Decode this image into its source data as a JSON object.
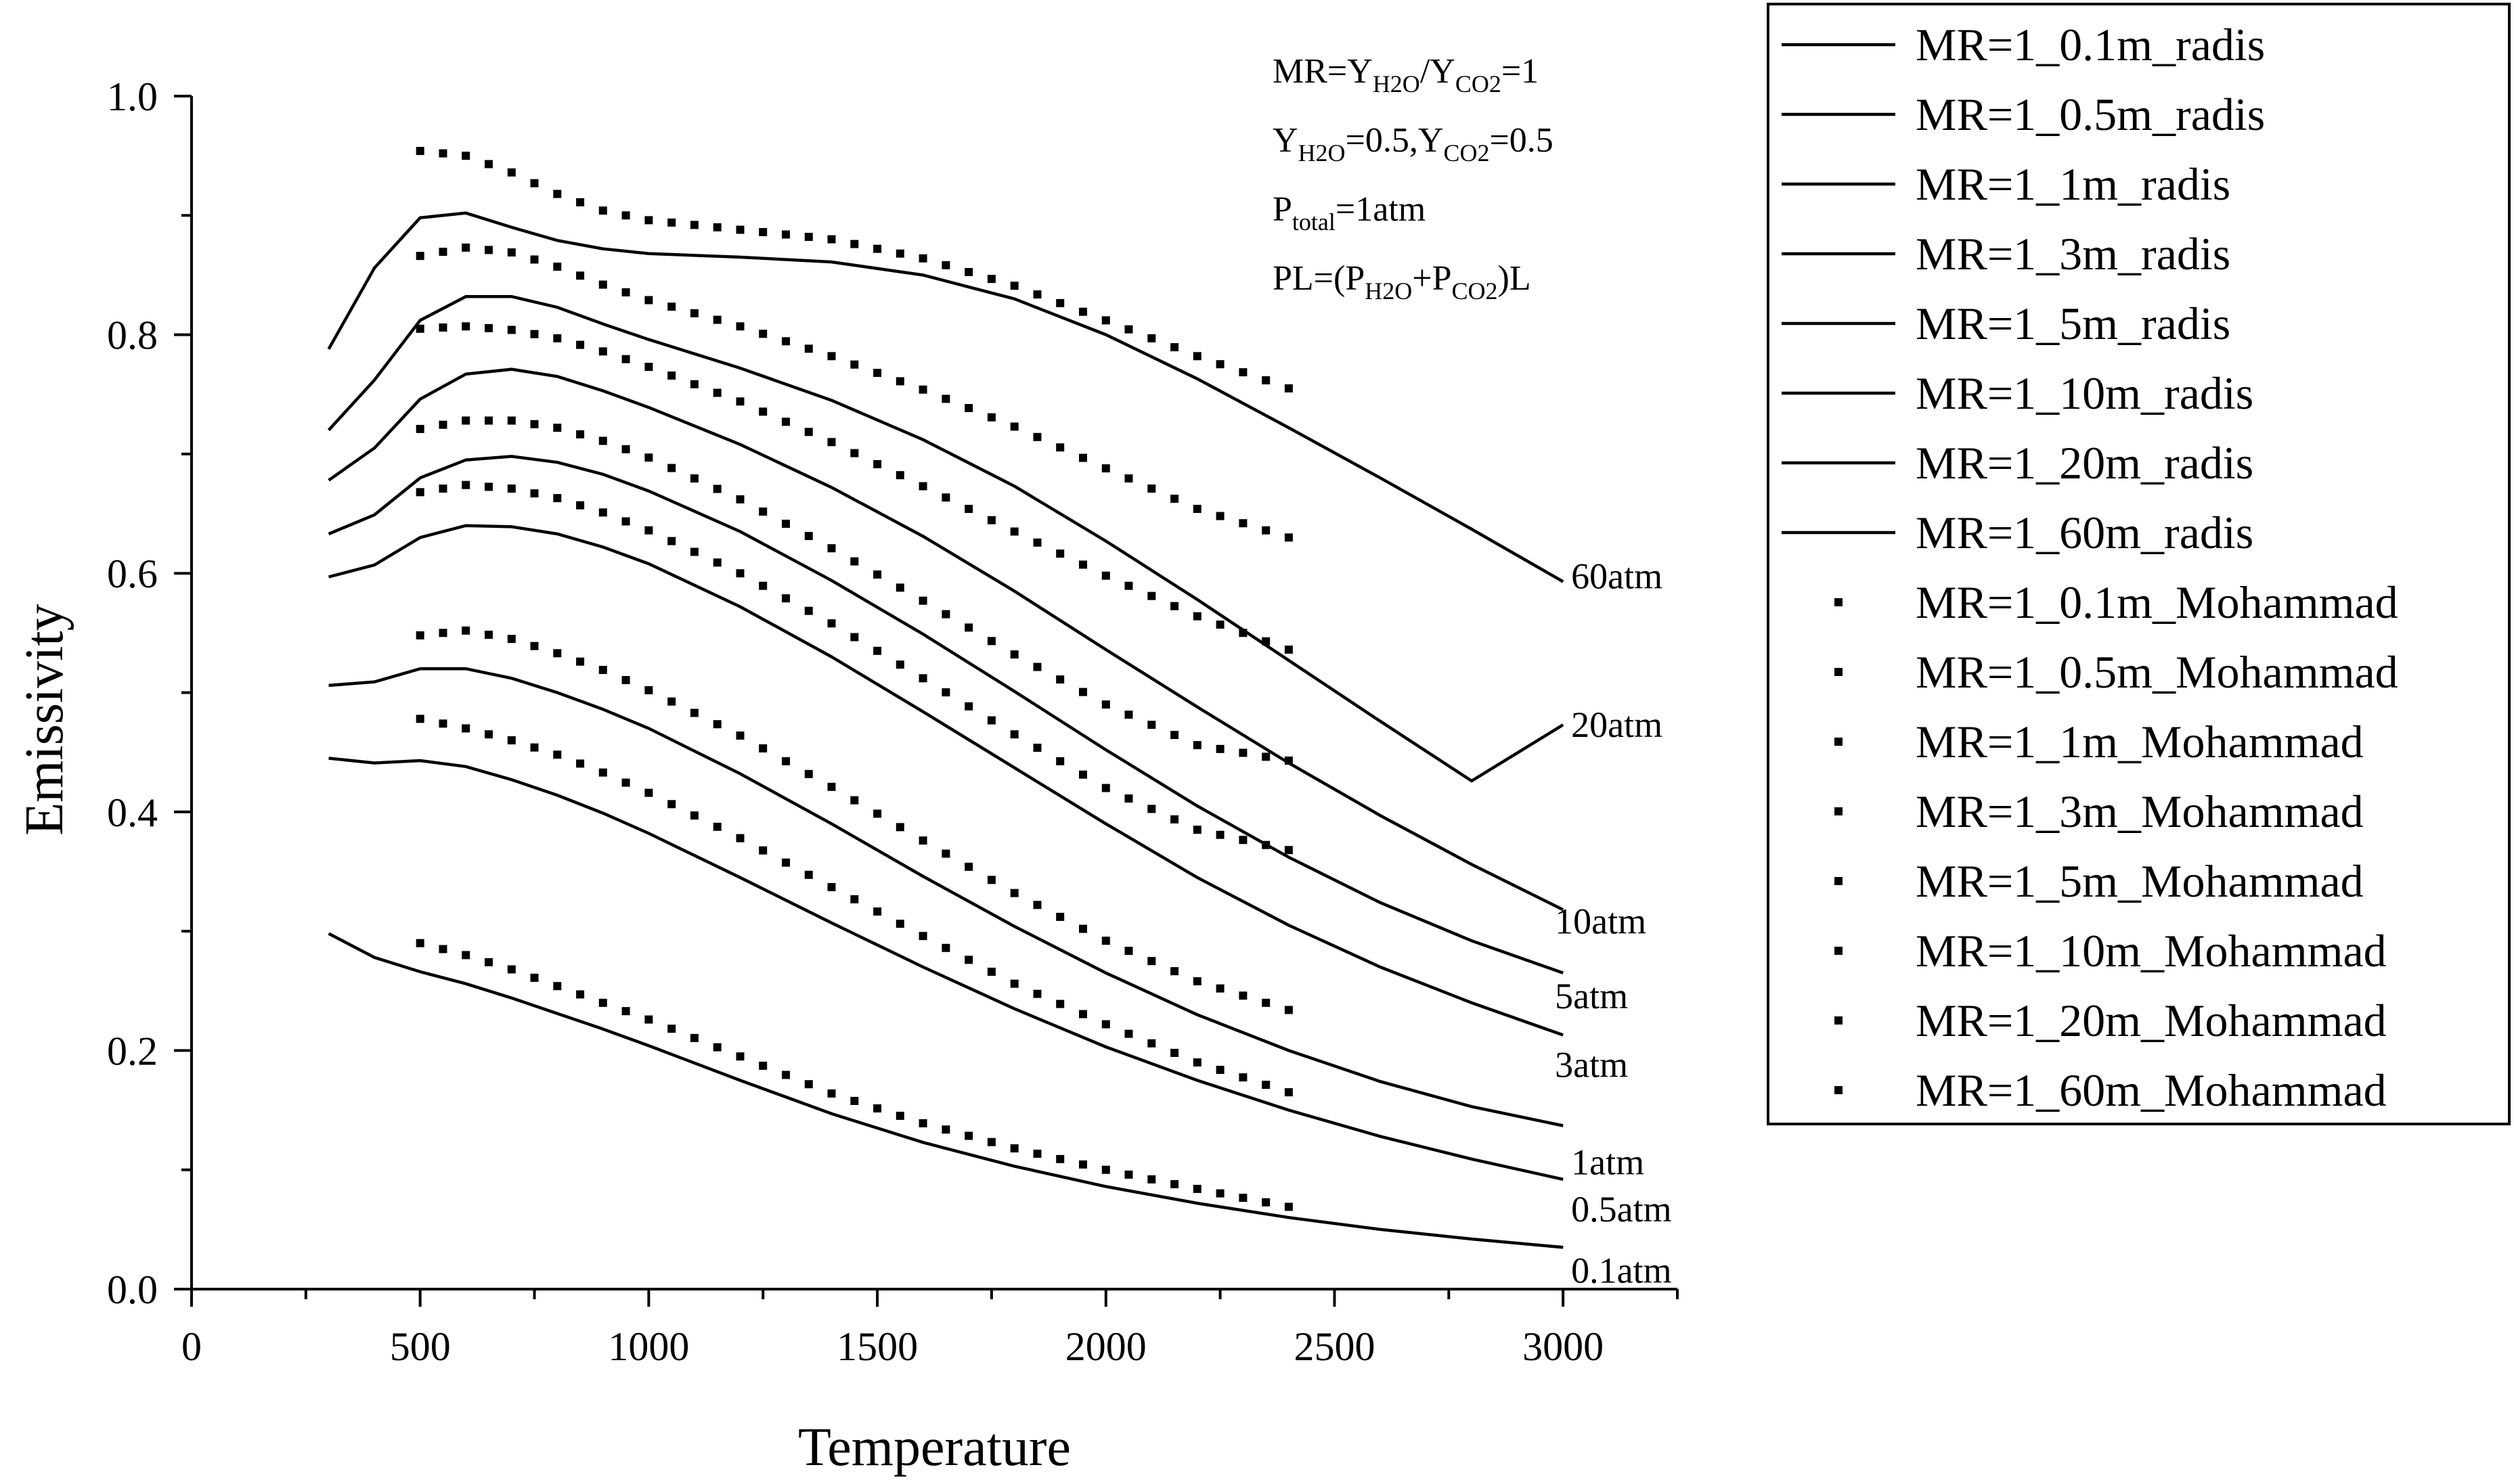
{
  "chart_data": {
    "type": "line",
    "xlabel": "Temperature",
    "ylabel": "Emissivity",
    "xlim": [
      0,
      3250
    ],
    "ylim": [
      0,
      1.0
    ],
    "xticks": [
      0,
      500,
      1000,
      1500,
      2000,
      2500,
      3000
    ],
    "xticks_minor": [
      250,
      750,
      1250,
      1750,
      2250,
      2750,
      3250
    ],
    "yticks": [
      0.0,
      0.2,
      0.4,
      0.6,
      0.8,
      1.0
    ],
    "yticks_minor": [
      0.1,
      0.3,
      0.5,
      0.7,
      0.9
    ],
    "ytick_labels": [
      "0.0",
      "0.2",
      "0.4",
      "0.6",
      "0.8",
      "1.0"
    ],
    "grid": false,
    "legend_placement": "right-outside",
    "annotation": [
      {
        "parts": [
          [
            "MR=Y",
            ""
          ],
          [
            "H2O",
            "sub"
          ],
          [
            "/Y",
            ""
          ],
          [
            "CO2",
            "sub"
          ],
          [
            "=1",
            ""
          ]
        ]
      },
      {
        "parts": [
          [
            "Y",
            ""
          ],
          [
            "H2O",
            "sub"
          ],
          [
            "=0.5,Y",
            ""
          ],
          [
            "CO2",
            "sub"
          ],
          [
            "=0.5",
            ""
          ]
        ]
      },
      {
        "parts": [
          [
            "P",
            ""
          ],
          [
            "total",
            "sub"
          ],
          [
            "=1atm",
            ""
          ]
        ]
      },
      {
        "parts": [
          [
            "PL=(P",
            ""
          ],
          [
            "H2O",
            "sub"
          ],
          [
            "+P",
            ""
          ],
          [
            "CO2",
            "sub"
          ],
          [
            ")L",
            ""
          ]
        ]
      }
    ],
    "curve_labels": [
      "60atm",
      "20atm",
      "10atm",
      "5atm",
      "3atm",
      "1atm",
      "0.5atm",
      "0.1atm"
    ],
    "series": [
      {
        "name": "MR=1_0.1m_radis",
        "style": "solid",
        "curve_label_index": 7,
        "x": [
          300,
          400,
          500,
          600,
          700,
          800,
          900,
          1000,
          1200,
          1400,
          1600,
          1800,
          2000,
          2200,
          2400,
          2600,
          2800,
          3000
        ],
        "y": [
          0.298,
          0.278,
          0.266,
          0.256,
          0.244,
          0.231,
          0.218,
          0.204,
          0.175,
          0.147,
          0.123,
          0.103,
          0.086,
          0.072,
          0.06,
          0.05,
          0.042,
          0.035
        ]
      },
      {
        "name": "MR=1_0.5m_radis",
        "style": "solid",
        "curve_label_index": 6,
        "x": [
          300,
          400,
          500,
          600,
          700,
          800,
          900,
          1000,
          1200,
          1400,
          1600,
          1800,
          2000,
          2200,
          2400,
          2600,
          2800,
          3000
        ],
        "y": [
          0.445,
          0.441,
          0.443,
          0.438,
          0.427,
          0.414,
          0.399,
          0.382,
          0.345,
          0.307,
          0.27,
          0.235,
          0.203,
          0.175,
          0.15,
          0.128,
          0.109,
          0.092
        ]
      },
      {
        "name": "MR=1_1m_radis",
        "style": "solid",
        "curve_label_index": 5,
        "x": [
          300,
          400,
          500,
          600,
          700,
          800,
          900,
          1000,
          1200,
          1400,
          1600,
          1800,
          2000,
          2200,
          2400,
          2600,
          2800,
          3000
        ],
        "y": [
          0.506,
          0.509,
          0.52,
          0.52,
          0.512,
          0.5,
          0.486,
          0.47,
          0.432,
          0.39,
          0.346,
          0.304,
          0.265,
          0.23,
          0.2,
          0.174,
          0.153,
          0.137
        ]
      },
      {
        "name": "MR=1_3m_radis",
        "style": "solid",
        "curve_label_index": 4,
        "x": [
          300,
          400,
          500,
          600,
          700,
          800,
          900,
          1000,
          1200,
          1400,
          1600,
          1800,
          2000,
          2200,
          2400,
          2600,
          2800,
          3000
        ],
        "y": [
          0.597,
          0.607,
          0.63,
          0.64,
          0.639,
          0.633,
          0.622,
          0.608,
          0.572,
          0.53,
          0.484,
          0.437,
          0.39,
          0.345,
          0.305,
          0.27,
          0.24,
          0.213
        ]
      },
      {
        "name": "MR=1_5m_radis",
        "style": "solid",
        "curve_label_index": 3,
        "x": [
          300,
          400,
          500,
          600,
          700,
          800,
          900,
          1000,
          1200,
          1400,
          1600,
          1800,
          2000,
          2200,
          2400,
          2600,
          2800,
          3000
        ],
        "y": [
          0.633,
          0.649,
          0.68,
          0.695,
          0.698,
          0.693,
          0.683,
          0.669,
          0.635,
          0.594,
          0.549,
          0.501,
          0.452,
          0.405,
          0.362,
          0.324,
          0.292,
          0.265
        ]
      },
      {
        "name": "MR=1_10m_radis",
        "style": "solid",
        "curve_label_index": 2,
        "x": [
          300,
          400,
          500,
          600,
          700,
          800,
          900,
          1000,
          1200,
          1400,
          1600,
          1800,
          2000,
          2200,
          2400,
          2600,
          2800,
          3000
        ],
        "y": [
          0.678,
          0.705,
          0.746,
          0.767,
          0.771,
          0.765,
          0.753,
          0.739,
          0.708,
          0.672,
          0.631,
          0.585,
          0.536,
          0.488,
          0.441,
          0.397,
          0.356,
          0.318
        ]
      },
      {
        "name": "MR=1_20m_radis",
        "style": "solid",
        "curve_label_index": 1,
        "x": [
          300,
          400,
          500,
          600,
          700,
          800,
          900,
          1000,
          1200,
          1400,
          1600,
          1800,
          2000,
          2200,
          2400,
          2600,
          2800,
          3000
        ],
        "y": [
          0.72,
          0.762,
          0.812,
          0.832,
          0.832,
          0.823,
          0.809,
          0.796,
          0.772,
          0.745,
          0.712,
          0.673,
          0.627,
          0.578,
          0.527,
          0.476,
          0.426,
          0.473
        ]
      },
      {
        "name": "MR=1_60m_radis",
        "style": "solid",
        "curve_label_index": 0,
        "x": [
          300,
          400,
          500,
          600,
          700,
          800,
          900,
          1000,
          1200,
          1400,
          1600,
          1800,
          2000,
          2200,
          2400,
          2600,
          2800,
          3000
        ],
        "y": [
          0.788,
          0.856,
          0.898,
          0.902,
          0.89,
          0.879,
          0.872,
          0.868,
          0.865,
          0.861,
          0.85,
          0.83,
          0.8,
          0.763,
          0.722,
          0.68,
          0.637,
          0.593
        ]
      },
      {
        "name": "MR=1_0.1m_Mohammad",
        "style": "dots",
        "x": [
          500,
          600,
          700,
          800,
          900,
          1000,
          1200,
          1400,
          1600,
          1800,
          2000,
          2200,
          2400
        ],
        "y": [
          0.29,
          0.28,
          0.268,
          0.254,
          0.24,
          0.226,
          0.195,
          0.164,
          0.139,
          0.118,
          0.1,
          0.084,
          0.069
        ]
      },
      {
        "name": "MR=1_0.5m_Mohammad",
        "style": "dots",
        "x": [
          500,
          600,
          700,
          800,
          900,
          1000,
          1200,
          1400,
          1600,
          1800,
          2000,
          2200,
          2400
        ],
        "y": [
          0.478,
          0.47,
          0.46,
          0.448,
          0.433,
          0.416,
          0.378,
          0.337,
          0.296,
          0.256,
          0.222,
          0.19,
          0.165
        ]
      },
      {
        "name": "MR=1_1m_Mohammad",
        "style": "dots",
        "x": [
          500,
          600,
          700,
          800,
          900,
          1000,
          1200,
          1400,
          1600,
          1800,
          2000,
          2200,
          2400
        ],
        "y": [
          0.548,
          0.552,
          0.545,
          0.533,
          0.519,
          0.502,
          0.464,
          0.421,
          0.376,
          0.332,
          0.292,
          0.258,
          0.234
        ]
      },
      {
        "name": "MR=1_3m_Mohammad",
        "style": "dots",
        "x": [
          500,
          600,
          700,
          800,
          900,
          1000,
          1200,
          1400,
          1600,
          1800,
          2000,
          2200,
          2400
        ],
        "y": [
          0.668,
          0.674,
          0.671,
          0.663,
          0.651,
          0.636,
          0.6,
          0.558,
          0.512,
          0.465,
          0.42,
          0.385,
          0.368
        ]
      },
      {
        "name": "MR=1_5m_Mohammad",
        "style": "dots",
        "x": [
          500,
          600,
          700,
          800,
          900,
          1000,
          1200,
          1400,
          1600,
          1800,
          2000,
          2200,
          2400
        ],
        "y": [
          0.721,
          0.728,
          0.728,
          0.722,
          0.711,
          0.697,
          0.662,
          0.621,
          0.577,
          0.532,
          0.49,
          0.456,
          0.443
        ]
      },
      {
        "name": "MR=1_10m_Mohammad",
        "style": "dots",
        "x": [
          500,
          600,
          700,
          800,
          900,
          1000,
          1200,
          1400,
          1600,
          1800,
          2000,
          2200,
          2400
        ],
        "y": [
          0.805,
          0.807,
          0.804,
          0.797,
          0.786,
          0.773,
          0.744,
          0.71,
          0.673,
          0.635,
          0.598,
          0.564,
          0.536
        ]
      },
      {
        "name": "MR=1_20m_Mohammad",
        "style": "dots",
        "x": [
          500,
          600,
          700,
          800,
          900,
          1000,
          1200,
          1400,
          1600,
          1800,
          2000,
          2200,
          2400
        ],
        "y": [
          0.866,
          0.873,
          0.869,
          0.857,
          0.842,
          0.829,
          0.807,
          0.782,
          0.754,
          0.723,
          0.688,
          0.654,
          0.63
        ]
      },
      {
        "name": "MR=1_60m_Mohammad",
        "style": "dots",
        "x": [
          500,
          600,
          700,
          800,
          900,
          1000,
          1200,
          1400,
          1600,
          1800,
          2000,
          2200,
          2400
        ],
        "y": [
          0.954,
          0.95,
          0.936,
          0.918,
          0.904,
          0.896,
          0.888,
          0.88,
          0.864,
          0.841,
          0.812,
          0.782,
          0.755
        ]
      }
    ]
  }
}
